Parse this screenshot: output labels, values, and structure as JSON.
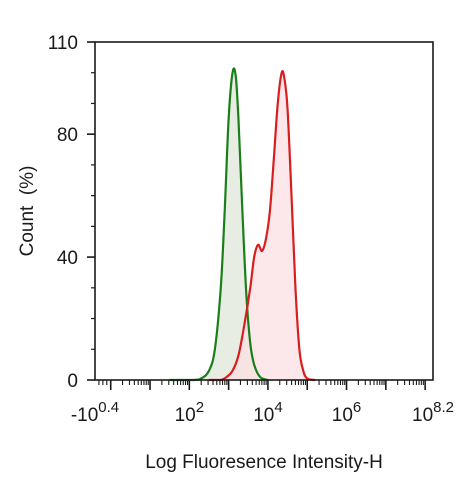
{
  "chart_data": {
    "type": "area",
    "xlabel": "Log Fluoresence Intensity-H",
    "ylabel": "Count  (%)",
    "ylim": [
      0,
      110
    ],
    "y_ticks": [
      0,
      40,
      80,
      110
    ],
    "x_scale": "log",
    "xlim_log10": [
      -0.4,
      8.2
    ],
    "x_tick_labels": [
      {
        "pos": -0.4,
        "base": "-10",
        "exp": "0.4"
      },
      {
        "pos": 2,
        "base": "10",
        "exp": "2"
      },
      {
        "pos": 4,
        "base": "10",
        "exp": "4"
      },
      {
        "pos": 6,
        "base": "10",
        "exp": "6"
      },
      {
        "pos": 8.2,
        "base": "10",
        "exp": "8.2"
      }
    ],
    "grid": false,
    "legend": "none",
    "series": [
      {
        "color": "#1a7f1a",
        "fill": "#e7ece1",
        "points": [
          [
            1.5,
            0
          ],
          [
            2.1,
            0
          ],
          [
            2.3,
            0.5
          ],
          [
            2.5,
            3
          ],
          [
            2.65,
            10
          ],
          [
            2.8,
            30
          ],
          [
            2.9,
            55
          ],
          [
            3.0,
            85
          ],
          [
            3.1,
            100
          ],
          [
            3.18,
            99
          ],
          [
            3.25,
            85
          ],
          [
            3.35,
            55
          ],
          [
            3.45,
            28
          ],
          [
            3.55,
            12
          ],
          [
            3.65,
            5
          ],
          [
            3.8,
            1
          ],
          [
            4.0,
            0
          ]
        ]
      },
      {
        "color": "#d81e1e",
        "fill": "#fbe0e3",
        "points": [
          [
            2.5,
            0
          ],
          [
            2.8,
            0
          ],
          [
            2.95,
            1
          ],
          [
            3.1,
            3
          ],
          [
            3.25,
            8
          ],
          [
            3.4,
            18
          ],
          [
            3.55,
            30
          ],
          [
            3.65,
            40
          ],
          [
            3.75,
            44
          ],
          [
            3.85,
            42
          ],
          [
            3.95,
            46
          ],
          [
            4.05,
            55
          ],
          [
            4.15,
            72
          ],
          [
            4.25,
            90
          ],
          [
            4.35,
            100
          ],
          [
            4.42,
            98
          ],
          [
            4.5,
            88
          ],
          [
            4.6,
            60
          ],
          [
            4.7,
            30
          ],
          [
            4.8,
            10
          ],
          [
            4.9,
            3
          ],
          [
            5.0,
            0.5
          ],
          [
            5.2,
            0
          ]
        ]
      }
    ]
  }
}
